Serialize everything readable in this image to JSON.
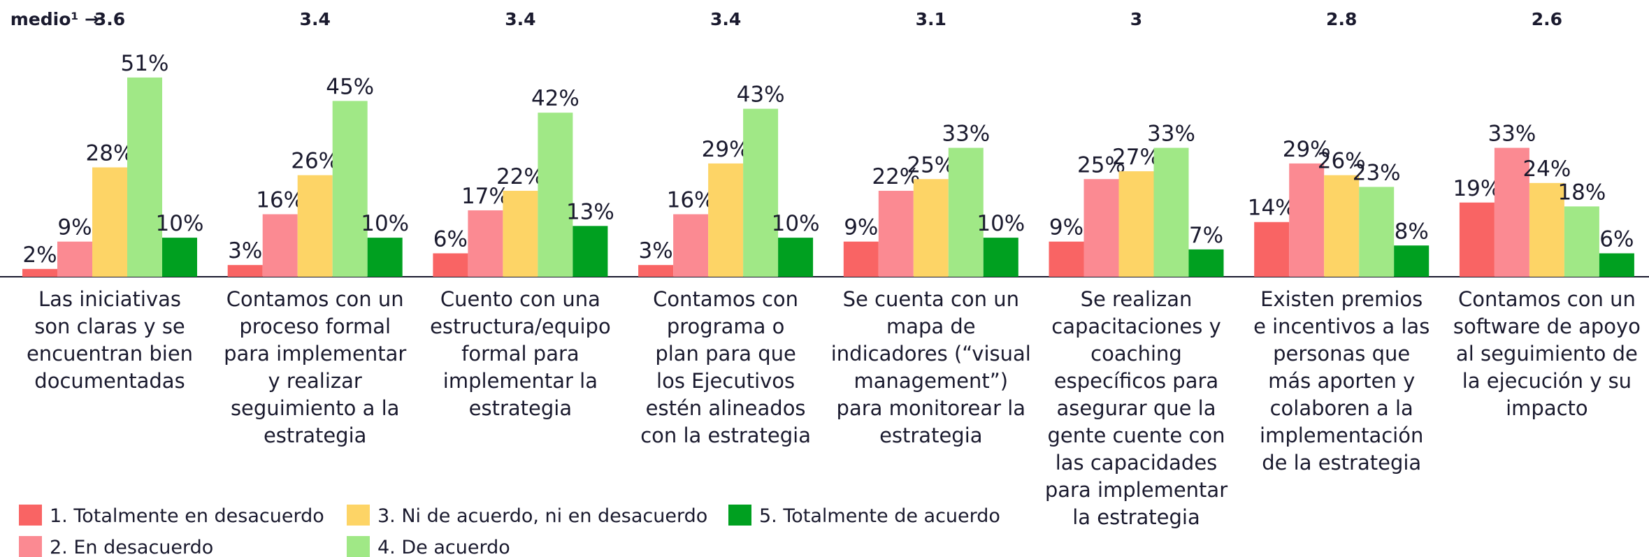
{
  "chart_data": {
    "type": "bar",
    "avg_label": "medio¹ →",
    "averages": [
      3.6,
      3.4,
      3.4,
      3.4,
      3.1,
      3.0,
      2.8,
      2.6
    ],
    "categories": [
      [
        "Las iniciativas",
        "son claras y se",
        "encuentran bien",
        "documentadas"
      ],
      [
        "Contamos con un",
        "proceso formal",
        "para implementar",
        "y realizar",
        "seguimiento a la",
        "estrategia"
      ],
      [
        "Cuento con una",
        "estructura/equipo",
        "formal para",
        "implementar la",
        "estrategia"
      ],
      [
        "Contamos con",
        "programa o",
        "plan para que",
        "los Ejecutivos",
        "estén alineados",
        "con la estrategia"
      ],
      [
        "Se cuenta con un",
        "mapa de",
        "indicadores (“visual",
        "management”)",
        "para monitorear la",
        "estrategia"
      ],
      [
        "Se realizan",
        "capacitaciones y",
        "coaching",
        "específicos para",
        "asegurar que la",
        "gente cuente con",
        "las capacidades",
        "para implementar",
        "la estrategia"
      ],
      [
        "Existen premios",
        "e incentivos a las",
        "personas que",
        "más aporten y",
        "colaboren a la",
        "implementación",
        "de la estrategia"
      ],
      [
        "Contamos con un",
        "software de apoyo",
        "al seguimiento de",
        "la ejecución y su",
        "impacto"
      ]
    ],
    "series": [
      {
        "name": "1. Totalmente en desacuerdo",
        "color": "#f96464",
        "values": [
          2,
          3,
          6,
          3,
          9,
          9,
          14,
          19
        ],
        "value_labels": [
          "2%",
          "3%",
          "6%",
          "3%",
          "9%",
          "9%",
          "14%",
          "19%"
        ]
      },
      {
        "name": "2. En desacuerdo",
        "color": "#fb8a92",
        "values": [
          9,
          16,
          17,
          16,
          22,
          25,
          29,
          33
        ],
        "value_labels": [
          "9%",
          "16%",
          "17%",
          "16%",
          "22%",
          "25%",
          "29%",
          "33%"
        ]
      },
      {
        "name": "3. Ni de acuerdo, ni en desacuerdo",
        "color": "#fdd466",
        "values": [
          28,
          26,
          22,
          29,
          25,
          27,
          26,
          24
        ],
        "value_labels": [
          "28%",
          "26%",
          "22%",
          "29%",
          "25%",
          "27%",
          "26%",
          "24%"
        ]
      },
      {
        "name": "4. De acuerdo",
        "color": "#a0e886",
        "values": [
          51,
          45,
          42,
          43,
          33,
          33,
          23,
          18
        ],
        "value_labels": [
          "51%",
          "45%",
          "42%",
          "43%",
          "33%",
          "33%",
          "23%",
          "18%"
        ]
      },
      {
        "name": "5. Totalmente de acuerdo",
        "color": "#00a020",
        "values": [
          10,
          10,
          13,
          10,
          10,
          7,
          8,
          6
        ],
        "value_labels": [
          "10%",
          "10%",
          "13%",
          "10%",
          "10%",
          "7%",
          "8%",
          "6%"
        ]
      }
    ]
  }
}
